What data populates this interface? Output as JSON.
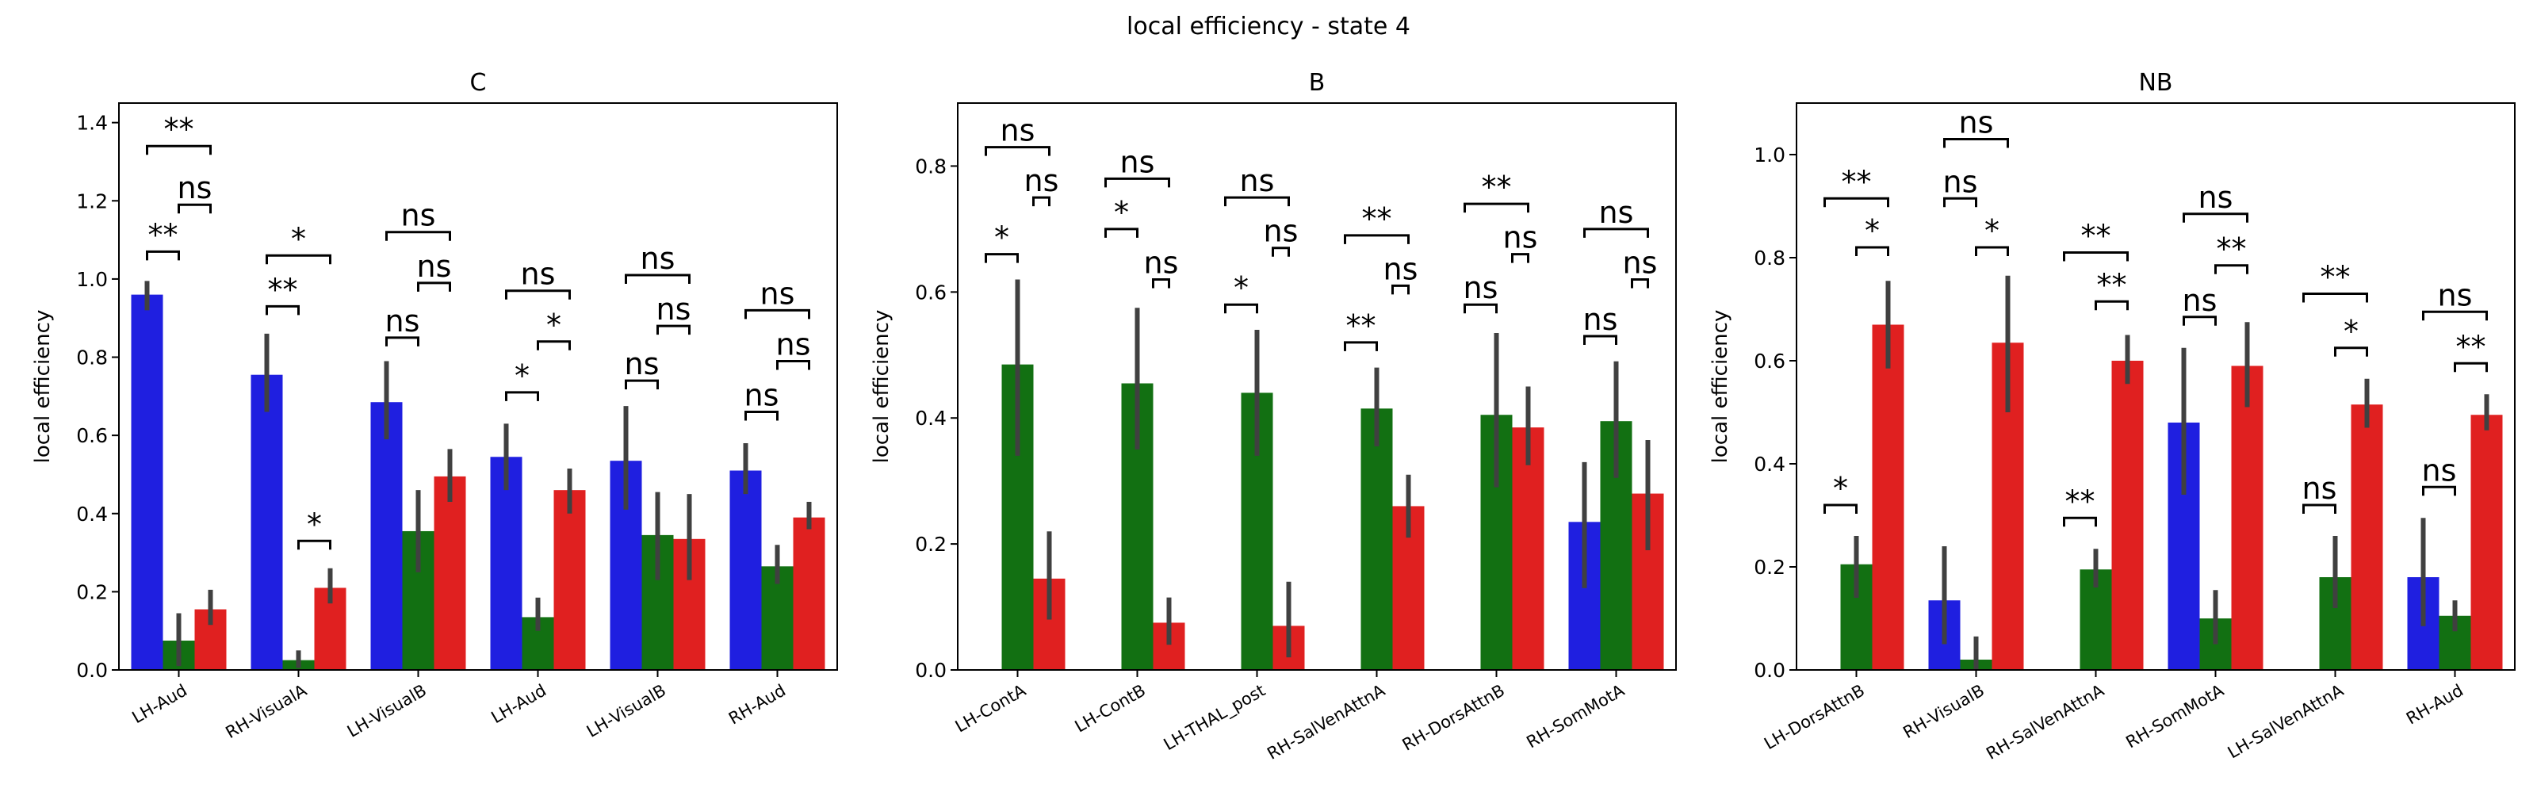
{
  "suptitle": "local efficiency - state 4",
  "colors": {
    "blue": "#1f1fe0",
    "green": "#127012",
    "red": "#e02020",
    "errbar": "#404040"
  },
  "chart_data": [
    {
      "type": "bar",
      "title": "C",
      "ylabel": "local efficiency",
      "ylim": [
        0,
        1.45
      ],
      "yticks": [
        0.0,
        0.2,
        0.4,
        0.6,
        0.8,
        1.0,
        1.2,
        1.4
      ],
      "ytick_labels": [
        "0.0",
        "0.2",
        "0.4",
        "0.6",
        "0.8",
        "1.0",
        "1.2",
        "1.4"
      ],
      "categories": [
        "LH-Aud",
        "RH-VisualA",
        "LH-VisualB",
        "LH-Aud",
        "LH-VisualB",
        "RH-Aud"
      ],
      "series": [
        {
          "color": "blue",
          "values": [
            0.96,
            0.755,
            0.685,
            0.545,
            0.535,
            0.51
          ],
          "err_low": [
            0.92,
            0.66,
            0.59,
            0.46,
            0.41,
            0.45
          ],
          "err_high": [
            0.995,
            0.86,
            0.79,
            0.63,
            0.675,
            0.58
          ]
        },
        {
          "color": "green",
          "values": [
            0.075,
            0.025,
            0.355,
            0.135,
            0.345,
            0.265
          ],
          "err_low": [
            0.01,
            0.005,
            0.25,
            0.1,
            0.23,
            0.22
          ],
          "err_high": [
            0.145,
            0.05,
            0.46,
            0.185,
            0.455,
            0.32
          ]
        },
        {
          "color": "red",
          "values": [
            0.155,
            0.21,
            0.495,
            0.46,
            0.335,
            0.39
          ],
          "err_low": [
            0.115,
            0.17,
            0.43,
            0.4,
            0.23,
            0.36
          ],
          "err_high": [
            0.205,
            0.26,
            0.565,
            0.515,
            0.45,
            0.43
          ]
        }
      ],
      "annotations": [
        {
          "cat": 0,
          "a": 0,
          "b": 1,
          "y": 1.07,
          "text": "**"
        },
        {
          "cat": 0,
          "a": 1,
          "b": 2,
          "y": 1.19,
          "text": "ns"
        },
        {
          "cat": 0,
          "a": 0,
          "b": 2,
          "y": 1.34,
          "text": "**"
        },
        {
          "cat": 1,
          "a": 1,
          "b": 2,
          "y": 0.33,
          "text": "*"
        },
        {
          "cat": 1,
          "a": 0,
          "b": 1,
          "y": 0.93,
          "text": "**"
        },
        {
          "cat": 1,
          "a": 0,
          "b": 2,
          "y": 1.06,
          "text": "*"
        },
        {
          "cat": 2,
          "a": 0,
          "b": 1,
          "y": 0.85,
          "text": "ns"
        },
        {
          "cat": 2,
          "a": 1,
          "b": 2,
          "y": 0.99,
          "text": "ns"
        },
        {
          "cat": 2,
          "a": 0,
          "b": 2,
          "y": 1.12,
          "text": "ns"
        },
        {
          "cat": 3,
          "a": 0,
          "b": 1,
          "y": 0.71,
          "text": "*"
        },
        {
          "cat": 3,
          "a": 1,
          "b": 2,
          "y": 0.84,
          "text": "*"
        },
        {
          "cat": 3,
          "a": 0,
          "b": 2,
          "y": 0.97,
          "text": "ns"
        },
        {
          "cat": 4,
          "a": 0,
          "b": 1,
          "y": 0.74,
          "text": "ns"
        },
        {
          "cat": 4,
          "a": 1,
          "b": 2,
          "y": 0.88,
          "text": "ns"
        },
        {
          "cat": 4,
          "a": 0,
          "b": 2,
          "y": 1.01,
          "text": "ns"
        },
        {
          "cat": 5,
          "a": 0,
          "b": 1,
          "y": 0.66,
          "text": "ns"
        },
        {
          "cat": 5,
          "a": 1,
          "b": 2,
          "y": 0.79,
          "text": "ns"
        },
        {
          "cat": 5,
          "a": 0,
          "b": 2,
          "y": 0.92,
          "text": "ns"
        }
      ]
    },
    {
      "type": "bar",
      "title": "B",
      "ylabel": "local efficiency",
      "ylim": [
        0,
        0.9
      ],
      "yticks": [
        0.0,
        0.2,
        0.4,
        0.6,
        0.8
      ],
      "ytick_labels": [
        "0.0",
        "0.2",
        "0.4",
        "0.6",
        "0.8"
      ],
      "categories": [
        "LH-ContA",
        "LH-ContB",
        "LH-THAL_post",
        "RH-SalVenAttnA",
        "RH-DorsAttnB",
        "RH-SomMotA"
      ],
      "series": [
        {
          "color": "blue",
          "values": [
            null,
            null,
            null,
            null,
            null,
            0.235
          ],
          "err_low": [
            null,
            null,
            null,
            null,
            null,
            0.13
          ],
          "err_high": [
            null,
            null,
            null,
            null,
            null,
            0.33
          ]
        },
        {
          "color": "green",
          "values": [
            0.485,
            0.455,
            0.44,
            0.415,
            0.405,
            0.395
          ],
          "err_low": [
            0.34,
            0.35,
            0.34,
            0.355,
            0.29,
            0.305
          ],
          "err_high": [
            0.62,
            0.575,
            0.54,
            0.48,
            0.535,
            0.49
          ]
        },
        {
          "color": "red",
          "values": [
            0.145,
            0.075,
            0.07,
            0.26,
            0.385,
            0.28
          ],
          "err_low": [
            0.08,
            0.04,
            0.02,
            0.21,
            0.325,
            0.19
          ],
          "err_high": [
            0.22,
            0.115,
            0.14,
            0.31,
            0.45,
            0.365
          ]
        }
      ],
      "annotations": [
        {
          "cat": 0,
          "a": 1,
          "b": 2,
          "y": 0.66,
          "text": "*",
          "align": "left"
        },
        {
          "cat": 0,
          "a": 1,
          "b": 2,
          "y": 0.75,
          "text": "ns",
          "align": "right"
        },
        {
          "cat": 0,
          "a": 1,
          "b": 2,
          "y": 0.83,
          "text": "ns",
          "align": "wide"
        },
        {
          "cat": 1,
          "a": 1,
          "b": 2,
          "y": 0.7,
          "text": "*",
          "align": "left"
        },
        {
          "cat": 1,
          "a": 1,
          "b": 2,
          "y": 0.62,
          "text": "ns",
          "align": "right"
        },
        {
          "cat": 1,
          "a": 1,
          "b": 2,
          "y": 0.78,
          "text": "ns",
          "align": "wide"
        },
        {
          "cat": 2,
          "a": 1,
          "b": 2,
          "y": 0.58,
          "text": "*",
          "align": "left"
        },
        {
          "cat": 2,
          "a": 1,
          "b": 2,
          "y": 0.67,
          "text": "ns",
          "align": "right"
        },
        {
          "cat": 2,
          "a": 1,
          "b": 2,
          "y": 0.75,
          "text": "ns",
          "align": "wide"
        },
        {
          "cat": 3,
          "a": 1,
          "b": 2,
          "y": 0.52,
          "text": "**",
          "align": "left"
        },
        {
          "cat": 3,
          "a": 1,
          "b": 2,
          "y": 0.61,
          "text": "ns",
          "align": "right"
        },
        {
          "cat": 3,
          "a": 1,
          "b": 2,
          "y": 0.69,
          "text": "**",
          "align": "wide"
        },
        {
          "cat": 4,
          "a": 1,
          "b": 2,
          "y": 0.58,
          "text": "ns",
          "align": "left"
        },
        {
          "cat": 4,
          "a": 1,
          "b": 2,
          "y": 0.66,
          "text": "ns",
          "align": "right"
        },
        {
          "cat": 4,
          "a": 1,
          "b": 2,
          "y": 0.74,
          "text": "**",
          "align": "wide"
        },
        {
          "cat": 5,
          "a": 1,
          "b": 2,
          "y": 0.53,
          "text": "ns",
          "align": "left"
        },
        {
          "cat": 5,
          "a": 1,
          "b": 2,
          "y": 0.62,
          "text": "ns",
          "align": "right"
        },
        {
          "cat": 5,
          "a": 1,
          "b": 2,
          "y": 0.7,
          "text": "ns",
          "align": "wide"
        }
      ]
    },
    {
      "type": "bar",
      "title": "NB",
      "ylabel": "local efficiency",
      "ylim": [
        0,
        1.1
      ],
      "yticks": [
        0.0,
        0.2,
        0.4,
        0.6,
        0.8,
        1.0
      ],
      "ytick_labels": [
        "0.0",
        "0.2",
        "0.4",
        "0.6",
        "0.8",
        "1.0"
      ],
      "categories": [
        "LH-DorsAttnB",
        "RH-VisualB",
        "RH-SalVenAttnA",
        "RH-SomMotA",
        "LH-SalVenAttnA",
        "RH-Aud"
      ],
      "series": [
        {
          "color": "blue",
          "values": [
            null,
            0.135,
            null,
            0.48,
            null,
            0.18
          ],
          "err_low": [
            null,
            0.05,
            null,
            0.34,
            null,
            0.085
          ],
          "err_high": [
            null,
            0.24,
            null,
            0.625,
            null,
            0.295
          ]
        },
        {
          "color": "green",
          "values": [
            0.205,
            0.02,
            0.195,
            0.1,
            0.18,
            0.105
          ],
          "err_low": [
            0.14,
            0.0,
            0.16,
            0.05,
            0.12,
            0.075
          ],
          "err_high": [
            0.26,
            0.065,
            0.235,
            0.155,
            0.26,
            0.135
          ]
        },
        {
          "color": "red",
          "values": [
            0.67,
            0.635,
            0.6,
            0.59,
            0.515,
            0.495
          ],
          "err_low": [
            0.585,
            0.5,
            0.555,
            0.51,
            0.47,
            0.465
          ],
          "err_high": [
            0.755,
            0.765,
            0.65,
            0.675,
            0.565,
            0.535
          ]
        }
      ],
      "annotations": [
        {
          "cat": 0,
          "a": 1,
          "b": 1,
          "y": 0.32,
          "text": "*",
          "align": "left"
        },
        {
          "cat": 0,
          "a": 1,
          "b": 2,
          "y": 0.82,
          "text": "*"
        },
        {
          "cat": 0,
          "a": 1,
          "b": 2,
          "y": 0.915,
          "text": "**",
          "align": "wide"
        },
        {
          "cat": 1,
          "a": 0,
          "b": 1,
          "y": 0.915,
          "text": "ns"
        },
        {
          "cat": 1,
          "a": 1,
          "b": 2,
          "y": 0.82,
          "text": "*"
        },
        {
          "cat": 1,
          "a": 0,
          "b": 2,
          "y": 1.03,
          "text": "ns"
        },
        {
          "cat": 2,
          "a": 1,
          "b": 1,
          "y": 0.295,
          "text": "**",
          "align": "left"
        },
        {
          "cat": 2,
          "a": 1,
          "b": 2,
          "y": 0.715,
          "text": "**"
        },
        {
          "cat": 2,
          "a": 1,
          "b": 2,
          "y": 0.81,
          "text": "**",
          "align": "wide"
        },
        {
          "cat": 3,
          "a": 0,
          "b": 1,
          "y": 0.685,
          "text": "ns"
        },
        {
          "cat": 3,
          "a": 1,
          "b": 2,
          "y": 0.785,
          "text": "**"
        },
        {
          "cat": 3,
          "a": 0,
          "b": 2,
          "y": 0.885,
          "text": "ns"
        },
        {
          "cat": 4,
          "a": 1,
          "b": 1,
          "y": 0.32,
          "text": "ns",
          "align": "left"
        },
        {
          "cat": 4,
          "a": 1,
          "b": 2,
          "y": 0.625,
          "text": "*"
        },
        {
          "cat": 4,
          "a": 1,
          "b": 2,
          "y": 0.73,
          "text": "**",
          "align": "wide"
        },
        {
          "cat": 5,
          "a": 0,
          "b": 1,
          "y": 0.355,
          "text": "ns"
        },
        {
          "cat": 5,
          "a": 1,
          "b": 2,
          "y": 0.595,
          "text": "**"
        },
        {
          "cat": 5,
          "a": 0,
          "b": 2,
          "y": 0.695,
          "text": "ns"
        }
      ]
    }
  ]
}
